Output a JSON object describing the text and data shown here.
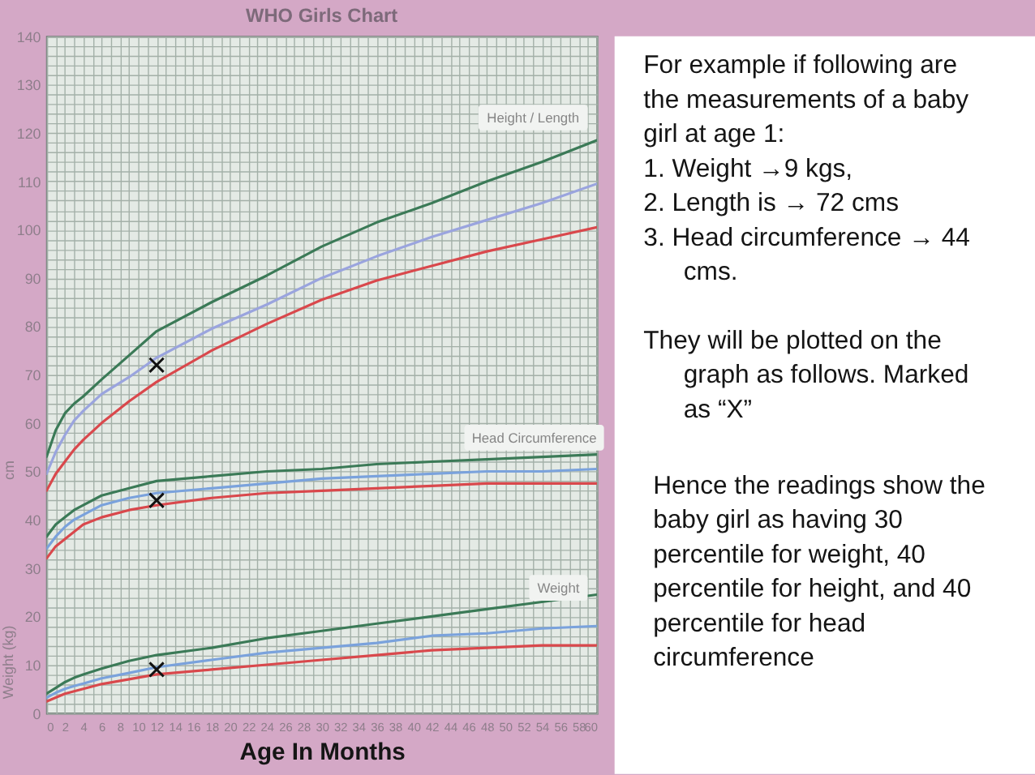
{
  "chart_data": {
    "type": "line",
    "title": "WHO Girls Chart",
    "xlabel": "Age In Months",
    "ylabel": "cm",
    "x": [
      0,
      1,
      2,
      3,
      4,
      6,
      9,
      12,
      18,
      24,
      30,
      36,
      42,
      48,
      54,
      60
    ],
    "xlim": [
      0,
      60
    ],
    "ylim": [
      0,
      140
    ],
    "xticks": [
      0,
      {
        "value": 1,
        "label": null
      },
      2,
      {
        "value": 3,
        "label": null
      },
      4,
      {
        "value": 5,
        "label": null
      },
      6,
      {
        "value": 7,
        "label": null
      },
      8,
      {
        "value": 9,
        "label": null
      },
      10,
      {
        "value": 11,
        "label": null
      },
      12,
      {
        "value": 13,
        "label": null
      },
      14,
      {
        "value": 15,
        "label": null
      },
      16,
      {
        "value": 17,
        "label": null
      },
      18,
      {
        "value": 19,
        "label": null
      },
      20,
      {
        "value": 21,
        "label": null
      },
      22,
      {
        "value": 23,
        "label": null
      },
      24,
      {
        "value": 25,
        "label": null
      },
      26,
      {
        "value": 27,
        "label": null
      },
      28,
      {
        "value": 29,
        "label": null
      },
      30,
      {
        "value": 31,
        "label": null
      },
      32,
      {
        "value": 33,
        "label": null
      },
      34,
      {
        "value": 35,
        "label": null
      },
      36,
      {
        "value": 37,
        "label": null
      },
      38,
      {
        "value": 39,
        "label": null
      },
      40,
      {
        "value": 41,
        "label": null
      },
      42,
      {
        "value": 43,
        "label": null
      },
      44,
      {
        "value": 45,
        "label": null
      },
      46,
      {
        "value": 47,
        "label": null
      },
      48,
      {
        "value": 49,
        "label": null
      },
      50,
      {
        "value": 51,
        "label": null
      },
      52,
      {
        "value": 53,
        "label": null
      },
      54,
      {
        "value": 55,
        "label": null
      },
      56,
      {
        "value": 57,
        "label": null
      },
      58,
      {
        "value": 59,
        "label": null
      },
      60
    ],
    "yticks": [
      0,
      {
        "value": 2,
        "label": null
      },
      {
        "value": 4,
        "label": null
      },
      {
        "value": 6,
        "label": null
      },
      {
        "value": 8,
        "label": null
      },
      10,
      {
        "value": 12,
        "label": null
      },
      {
        "value": 14,
        "label": null
      },
      {
        "value": 16,
        "label": null
      },
      {
        "value": 18,
        "label": null
      },
      20,
      {
        "value": 22,
        "label": null
      },
      {
        "value": 24,
        "label": null
      },
      {
        "value": 26,
        "label": null
      },
      {
        "value": 28,
        "label": null
      },
      30,
      {
        "value": 32,
        "label": null
      },
      {
        "value": 34,
        "label": null
      },
      {
        "value": 36,
        "label": null
      },
      {
        "value": 38,
        "label": null
      },
      40,
      {
        "value": 42,
        "label": null
      },
      {
        "value": 44,
        "label": null
      },
      {
        "value": 46,
        "label": null
      },
      {
        "value": 48,
        "label": null
      },
      50,
      {
        "value": 52,
        "label": null
      },
      {
        "value": 54,
        "label": null
      },
      {
        "value": 56,
        "label": null
      },
      {
        "value": 58,
        "label": null
      },
      60,
      {
        "value": 62,
        "label": null
      },
      {
        "value": 64,
        "label": null
      },
      {
        "value": 66,
        "label": null
      },
      {
        "value": 68,
        "label": null
      },
      70,
      {
        "value": 72,
        "label": null
      },
      {
        "value": 74,
        "label": null
      },
      {
        "value": 76,
        "label": null
      },
      {
        "value": 78,
        "label": null
      },
      80,
      {
        "value": 82,
        "label": null
      },
      {
        "value": 84,
        "label": null
      },
      {
        "value": 86,
        "label": null
      },
      {
        "value": 88,
        "label": null
      },
      90,
      {
        "value": 92,
        "label": null
      },
      {
        "value": 94,
        "label": null
      },
      {
        "value": 96,
        "label": null
      },
      {
        "value": 98,
        "label": null
      },
      100,
      {
        "value": 102,
        "label": null
      },
      {
        "value": 104,
        "label": null
      },
      {
        "value": 106,
        "label": null
      },
      {
        "value": 108,
        "label": null
      },
      110,
      {
        "value": 112,
        "label": null
      },
      {
        "value": 114,
        "label": null
      },
      {
        "value": 116,
        "label": null
      },
      {
        "value": 118,
        "label": null
      },
      120,
      {
        "value": 122,
        "label": null
      },
      {
        "value": 124,
        "label": null
      },
      {
        "value": 126,
        "label": null
      },
      {
        "value": 128,
        "label": null
      },
      130,
      {
        "value": 132,
        "label": null
      },
      {
        "value": 134,
        "label": null
      },
      {
        "value": 136,
        "label": null
      },
      {
        "value": 138,
        "label": null
      },
      140
    ],
    "grid": true,
    "marker": "none",
    "line_style": "solid",
    "series": [
      {
        "color": "#3b7a57",
        "values": [
          53,
          58.5,
          62,
          64,
          65.5,
          69,
          74,
          79,
          85,
          90.5,
          96.5,
          101.5,
          105.5,
          110,
          114,
          118.5
        ]
      },
      {
        "color": "#9aa4de",
        "values": [
          49.5,
          54,
          57.5,
          60.5,
          62.5,
          66,
          69.5,
          73.5,
          79.5,
          84.5,
          90,
          94.5,
          98.5,
          102,
          105.5,
          109.5
        ]
      },
      {
        "color": "#d9484c",
        "values": [
          46,
          49.5,
          52,
          54.5,
          56.5,
          60,
          64.5,
          68.5,
          75,
          80.5,
          85.5,
          89.5,
          92.5,
          95.5,
          98,
          100.5
        ]
      },
      {
        "color": "#3b7a57",
        "values": [
          36.5,
          39,
          40.5,
          42,
          43,
          45,
          46.5,
          48,
          49,
          50,
          50.5,
          51.5,
          52,
          52.5,
          53,
          53.5
        ]
      },
      {
        "color": "#7aa2dc",
        "values": [
          34,
          36.5,
          38.5,
          40,
          41,
          43,
          44.5,
          45.5,
          46.5,
          47.5,
          48.5,
          49,
          49.5,
          50,
          50,
          50.5
        ]
      },
      {
        "color": "#d9484c",
        "values": [
          32,
          34.5,
          36,
          37.5,
          39,
          40.5,
          42,
          43,
          44.5,
          45.5,
          46,
          46.5,
          47,
          47.5,
          47.5,
          47.5
        ]
      },
      {
        "color": "#3b7a57",
        "values": [
          4,
          5.2,
          6.4,
          7.3,
          8,
          9.2,
          10.8,
          12,
          13.5,
          15.5,
          17,
          18.5,
          20,
          21.5,
          23,
          24.5
        ]
      },
      {
        "color": "#7aa2dc",
        "values": [
          3.2,
          4.2,
          5,
          5.6,
          6.1,
          7.2,
          8.3,
          9.5,
          11,
          12.5,
          13.5,
          14.5,
          16,
          16.5,
          17.5,
          18
        ]
      },
      {
        "color": "#d9484c",
        "values": [
          2.4,
          3.2,
          4,
          4.5,
          5,
          6,
          7,
          8,
          9,
          10,
          11,
          12,
          13,
          13.5,
          14,
          14
        ]
      },
      {
        "type": "scatter",
        "marker": "cross",
        "color": "#111111",
        "values": [
          null,
          null,
          null,
          null,
          null,
          null,
          null,
          72,
          null,
          null,
          null,
          null,
          null,
          null,
          null,
          null
        ]
      },
      {
        "type": "scatter",
        "marker": "cross",
        "color": "#111111",
        "values": [
          null,
          null,
          null,
          null,
          null,
          null,
          null,
          44,
          null,
          null,
          null,
          null,
          null,
          null,
          null,
          null
        ]
      },
      {
        "type": "scatter",
        "marker": "cross",
        "color": "#111111",
        "values": [
          null,
          null,
          null,
          null,
          null,
          null,
          null,
          9,
          null,
          null,
          null,
          null,
          null,
          null,
          null,
          null
        ]
      }
    ],
    "annotations": [
      "Height / Length",
      "Head Circumference",
      "Weight",
      "Weight (kg)",
      "For example if following are the measurements of a baby girl at age 1:",
      "1. Weight →9 kgs,",
      "2. Length is → 72 cms",
      "3. Head circumference → 44 cms.",
      "They will be plotted on the graph as follows. Marked as “X”",
      "Hence the readings show the baby girl as having 30 percentile for weight, 40 percentile for height, and 40 percentile for head circumference"
    ]
  }
}
